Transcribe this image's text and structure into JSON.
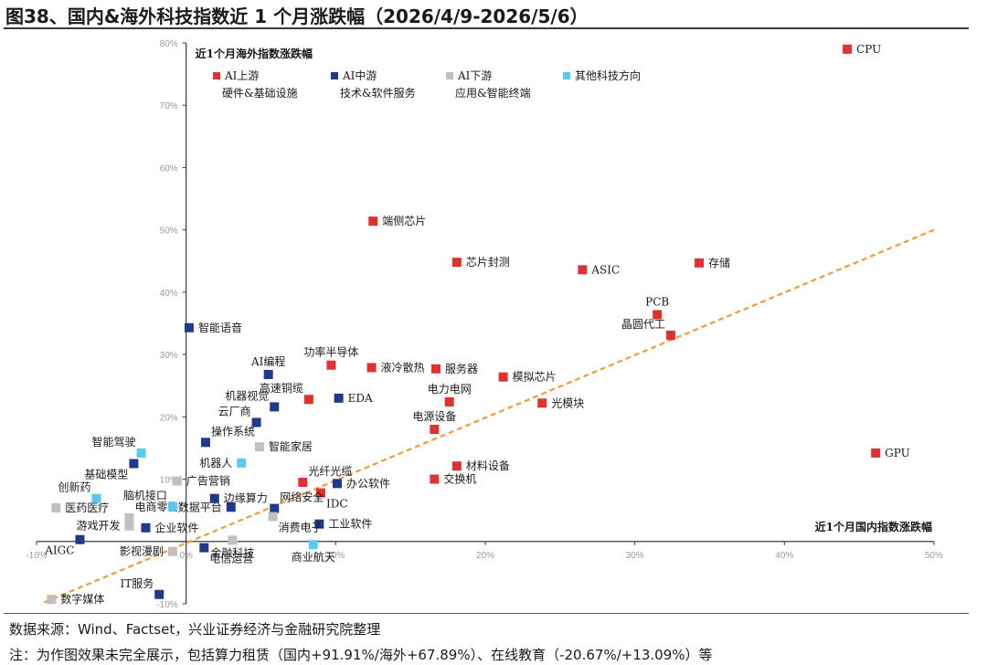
{
  "figure": {
    "title": "图38、国内&海外科技指数近 1 个月涨跌幅（2026/4/9-2026/5/6）",
    "source": "数据来源：Wind、Factset，兴业证券经济与金融研究院整理",
    "note": "注：为作图效果未完全展示，包括算力租赁（国内+91.91%/海外+67.89%）、在线教育（-20.67%/+13.09%）等"
  },
  "chart_data": {
    "type": "scatter",
    "xlabel": "近1个月国内指数涨跌幅",
    "ylabel": "近1个月海外指数涨跌幅",
    "xlim": [
      -0.1,
      0.5
    ],
    "ylim": [
      -0.1,
      0.8
    ],
    "x_ticks": [
      -0.1,
      0.0,
      0.1,
      0.2,
      0.3,
      0.4,
      0.5
    ],
    "x_tick_labels": [
      "-10%",
      "0%",
      "10%",
      "20%",
      "30%",
      "40%",
      "50%"
    ],
    "y_ticks": [
      -0.1,
      0.0,
      0.1,
      0.2,
      0.3,
      0.4,
      0.5,
      0.6,
      0.7,
      0.8
    ],
    "y_tick_labels": [
      "-10%",
      "0%",
      "10%",
      "20%",
      "30%",
      "40%",
      "50%",
      "60%",
      "70%",
      "80%"
    ],
    "grid": false,
    "legend_position": "top-left",
    "colors": {
      "upstream": "#e03030",
      "midstream": "#1f3a8a",
      "downstream": "#c0c0c0",
      "other": "#5bc8ef",
      "trend": "#f59a3a"
    },
    "series": [
      {
        "key": "upstream",
        "name": "AI上游",
        "sub": "硬件&基础设施"
      },
      {
        "key": "midstream",
        "name": "AI中游",
        "sub": "技术&软件服务"
      },
      {
        "key": "downstream",
        "name": "AI下游",
        "sub": "应用&智能终端"
      },
      {
        "key": "other",
        "name": "其他科技方向",
        "sub": ""
      }
    ],
    "points": [
      {
        "label": "CPU",
        "s": "upstream",
        "x": 0.442,
        "y": 0.79,
        "pos": "r"
      },
      {
        "label": "GPU",
        "s": "upstream",
        "x": 0.461,
        "y": 0.142,
        "pos": "r"
      },
      {
        "label": "端侧芯片",
        "s": "upstream",
        "x": 0.125,
        "y": 0.514,
        "pos": "r"
      },
      {
        "label": "芯片封测",
        "s": "upstream",
        "x": 0.181,
        "y": 0.448,
        "pos": "r"
      },
      {
        "label": "ASIC",
        "s": "upstream",
        "x": 0.265,
        "y": 0.436,
        "pos": "r"
      },
      {
        "label": "存储",
        "s": "upstream",
        "x": 0.343,
        "y": 0.447,
        "pos": "r"
      },
      {
        "label": "PCB",
        "s": "upstream",
        "x": 0.315,
        "y": 0.364,
        "pos": "t"
      },
      {
        "label": "晶圆代工",
        "s": "upstream",
        "x": 0.324,
        "y": 0.331,
        "pos": "tl"
      },
      {
        "label": "功率半导体",
        "s": "upstream",
        "x": 0.097,
        "y": 0.283,
        "pos": "t"
      },
      {
        "label": "液冷散热",
        "s": "upstream",
        "x": 0.124,
        "y": 0.279,
        "pos": "r"
      },
      {
        "label": "服务器",
        "s": "upstream",
        "x": 0.167,
        "y": 0.277,
        "pos": "r"
      },
      {
        "label": "模拟芯片",
        "s": "upstream",
        "x": 0.212,
        "y": 0.264,
        "pos": "r"
      },
      {
        "label": "电力电网",
        "s": "upstream",
        "x": 0.176,
        "y": 0.224,
        "pos": "t"
      },
      {
        "label": "光模块",
        "s": "upstream",
        "x": 0.238,
        "y": 0.222,
        "pos": "r"
      },
      {
        "label": "高速铜缆",
        "s": "upstream",
        "x": 0.082,
        "y": 0.228,
        "pos": "tl"
      },
      {
        "label": "电源设备",
        "s": "upstream",
        "x": 0.166,
        "y": 0.18,
        "pos": "t"
      },
      {
        "label": "材料设备",
        "s": "upstream",
        "x": 0.181,
        "y": 0.121,
        "pos": "r"
      },
      {
        "label": "交换机",
        "s": "upstream",
        "x": 0.166,
        "y": 0.1,
        "pos": "r"
      },
      {
        "label": "光纤光缆",
        "s": "upstream",
        "x": 0.078,
        "y": 0.095,
        "pos": "tr"
      },
      {
        "label": "IDC",
        "s": "upstream",
        "x": 0.09,
        "y": 0.078,
        "pos": "br"
      },
      {
        "label": "智能语音",
        "s": "midstream",
        "x": 0.002,
        "y": 0.343,
        "pos": "r"
      },
      {
        "label": "AI编程",
        "s": "midstream",
        "x": 0.055,
        "y": 0.268,
        "pos": "t"
      },
      {
        "label": "EDA",
        "s": "midstream",
        "x": 0.102,
        "y": 0.23,
        "pos": "r"
      },
      {
        "label": "机器视觉",
        "s": "midstream",
        "x": 0.059,
        "y": 0.216,
        "pos": "tl"
      },
      {
        "label": "云厂商",
        "s": "midstream",
        "x": 0.047,
        "y": 0.191,
        "pos": "tl"
      },
      {
        "label": "操作系统",
        "s": "midstream",
        "x": 0.013,
        "y": 0.159,
        "pos": "tr"
      },
      {
        "label": "基础模型",
        "s": "midstream",
        "x": -0.035,
        "y": 0.125,
        "pos": "bl"
      },
      {
        "label": "办公软件",
        "s": "midstream",
        "x": 0.101,
        "y": 0.093,
        "pos": "r"
      },
      {
        "label": "边缘算力",
        "s": "midstream",
        "x": 0.019,
        "y": 0.069,
        "pos": "r"
      },
      {
        "label": "数据平台",
        "s": "midstream",
        "x": 0.03,
        "y": 0.055,
        "pos": "l"
      },
      {
        "label": "网络安全",
        "s": "midstream",
        "x": 0.059,
        "y": 0.053,
        "pos": "tr"
      },
      {
        "label": "工业软件",
        "s": "midstream",
        "x": 0.089,
        "y": 0.028,
        "pos": "r"
      },
      {
        "label": "企业软件",
        "s": "midstream",
        "x": -0.027,
        "y": 0.022,
        "pos": "r"
      },
      {
        "label": "AIGC",
        "s": "midstream",
        "x": -0.071,
        "y": 0.003,
        "pos": "bl"
      },
      {
        "label": "电信运营",
        "s": "midstream",
        "x": 0.012,
        "y": -0.01,
        "pos": "br"
      },
      {
        "label": "IT服务",
        "s": "midstream",
        "x": -0.018,
        "y": -0.085,
        "pos": "tl"
      },
      {
        "label": "智能家居",
        "s": "downstream",
        "x": 0.049,
        "y": 0.152,
        "pos": "r"
      },
      {
        "label": "广告营销",
        "s": "downstream",
        "x": -0.006,
        "y": 0.097,
        "pos": "r"
      },
      {
        "label": "医药医疗",
        "s": "downstream",
        "x": -0.087,
        "y": 0.054,
        "pos": "r"
      },
      {
        "label": "电商零售",
        "s": "downstream",
        "x": -0.038,
        "y": 0.038,
        "pos": "tr"
      },
      {
        "label": "游戏开发",
        "s": "downstream",
        "x": -0.038,
        "y": 0.025,
        "pos": "l"
      },
      {
        "label": "消费电子",
        "s": "downstream",
        "x": 0.058,
        "y": 0.04,
        "pos": "br"
      },
      {
        "label": "金融科技",
        "s": "downstream",
        "x": 0.031,
        "y": 0.002,
        "pos": "b"
      },
      {
        "label": "影视漫剧",
        "s": "downstream",
        "x": -0.009,
        "y": -0.016,
        "pos": "l"
      },
      {
        "label": "数字媒体",
        "s": "downstream",
        "x": -0.09,
        "y": -0.093,
        "pos": "r"
      },
      {
        "label": "智能驾驶",
        "s": "other",
        "x": -0.03,
        "y": 0.142,
        "pos": "tl"
      },
      {
        "label": "机器人",
        "s": "other",
        "x": 0.037,
        "y": 0.126,
        "pos": "l"
      },
      {
        "label": "脑机接口",
        "s": "other",
        "x": -0.009,
        "y": 0.056,
        "pos": "tl"
      },
      {
        "label": "创新药",
        "s": "other",
        "x": -0.06,
        "y": 0.069,
        "pos": "tl"
      },
      {
        "label": "商业航天",
        "s": "other",
        "x": 0.085,
        "y": -0.005,
        "pos": "b"
      }
    ],
    "trend_line": {
      "x": [
        -0.095,
        0.5
      ],
      "y": [
        -0.098,
        0.5
      ],
      "style": "dashed"
    }
  }
}
